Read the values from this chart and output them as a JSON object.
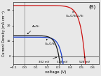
{
  "title": "(B)",
  "xlabel": "voltage (V)",
  "ylabel": "Current Density (mA cm⁻²)",
  "xlim": [
    -0.1,
    0.65
  ],
  "ylim": [
    -5,
    35
  ],
  "yticks": [
    0,
    10,
    20,
    30
  ],
  "xticks": [
    -0.1,
    0.0,
    0.1,
    0.2,
    0.3,
    0.4,
    0.5,
    0.6
  ],
  "voc_AuSi": 0.302,
  "voc_Cu2OSi": 0.328,
  "voc_Cu2OSiO2Si": 0.528,
  "jsc_AuSi": 13.5,
  "jsc_Cu2OSi": 12.5,
  "jsc_Cu2OSiO2Si": 33.0,
  "n_AuSi": 1.3,
  "n_Cu2OSi": 1.3,
  "n_Cu2OSiO2Si": 1.6,
  "color_AuSi": "#1a1a1a",
  "color_Cu2OSi": "#1a3fcc",
  "color_Cu2OSiO2Si": "#cc1111",
  "bg_color": "#e8e8e8",
  "label_AuSi": "Au/Si",
  "label_Cu2OSi": "Cu₂O/Si",
  "label_Cu2OSiO2Si": "Cu₂O/SiO₂/Si",
  "annot_302": "302 mV",
  "annot_328": "328 mV",
  "annot_528": "528 mV",
  "lw": 0.9
}
